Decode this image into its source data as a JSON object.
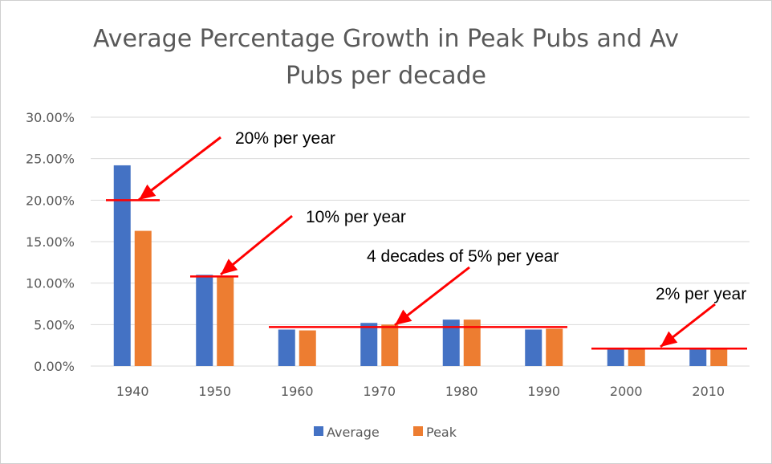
{
  "chart_data": {
    "type": "bar",
    "title": "Average Percentage Growth in Peak Pubs and Av",
    "title_line2": "Pubs per decade",
    "categories": [
      "1940",
      "1950",
      "1960",
      "1970",
      "1980",
      "1990",
      "2000",
      "2010"
    ],
    "series": [
      {
        "name": "Average",
        "color": "#4472c4",
        "values": [
          24.2,
          11.0,
          4.4,
          5.2,
          5.6,
          4.4,
          2.0,
          2.0
        ]
      },
      {
        "name": "Peak",
        "color": "#ed7d31",
        "values": [
          16.3,
          10.8,
          4.3,
          5.0,
          5.6,
          4.5,
          2.0,
          2.0
        ]
      }
    ],
    "y_ticks": [
      "0.00%",
      "5.00%",
      "10.00%",
      "15.00%",
      "20.00%",
      "25.00%",
      "30.00%"
    ],
    "ylim": [
      0,
      30
    ],
    "grid": true,
    "legend_position": "bottom",
    "annotation_color": "#ff0000",
    "annotations": [
      {
        "text": "20% per year",
        "level": 20,
        "from_category": 0,
        "to_category": 0
      },
      {
        "text": "10% per year",
        "level": 10.8,
        "from_category": 1,
        "to_category": 1
      },
      {
        "text": "4 decades of 5% per year",
        "level": 4.7,
        "from_category": 2,
        "to_category": 5
      },
      {
        "text": "2% per year",
        "level": 2.1,
        "from_category": 6,
        "to_category": 7
      }
    ]
  }
}
